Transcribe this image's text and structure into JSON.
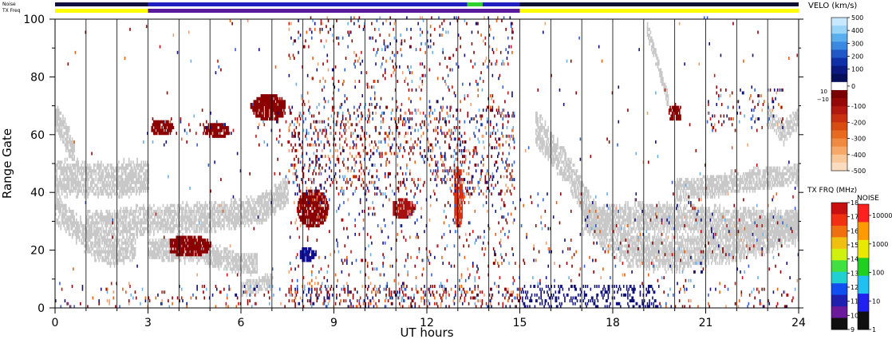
{
  "header": {
    "noise_label": "Noise",
    "txfreq_label": "TX Freq"
  },
  "chart_data": {
    "type": "heatmap",
    "title": "",
    "xlabel": "UT hours",
    "ylabel": "Range Gate",
    "xlim": [
      0,
      24
    ],
    "ylim": [
      0,
      100
    ],
    "x_ticks": [
      0,
      3,
      6,
      9,
      12,
      15,
      18,
      21,
      24
    ],
    "y_ticks": [
      0,
      20,
      40,
      60,
      80,
      100
    ],
    "grid": "vertical lines every 1 hour",
    "ground_scatter_color": "#c8c8c8",
    "velocity_colorbar": {
      "label": "VELO (km/s)",
      "ticks": [
        500,
        400,
        300,
        200,
        100,
        0,
        -100,
        -200,
        -300,
        -400,
        -500
      ],
      "threshold_labels": [
        "10",
        "−10"
      ]
    },
    "txfreq_colorbar": {
      "label": "TX FRQ (MHz)",
      "ticks": [
        18,
        17,
        16,
        15,
        14,
        13,
        12,
        11,
        10,
        9
      ]
    },
    "noise_colorbar": {
      "label": "NOISE",
      "ticks": [
        "10000",
        "1000",
        "100",
        "10",
        "1"
      ]
    },
    "txfreq_segments": [
      {
        "start": 0,
        "end": 3,
        "color": "#ffff00"
      },
      {
        "start": 3,
        "end": 15,
        "color": "#5a1a9e"
      },
      {
        "start": 15,
        "end": 24,
        "color": "#ffff00"
      }
    ],
    "noise_segments": [
      {
        "start": 0,
        "end": 3,
        "color": "#101040"
      },
      {
        "start": 3,
        "end": 13.3,
        "color": "#2020c0"
      },
      {
        "start": 13.3,
        "end": 13.8,
        "color": "#30d030"
      },
      {
        "start": 13.8,
        "end": 15,
        "color": "#2020c0"
      },
      {
        "start": 15,
        "end": 24,
        "color": "#101030"
      }
    ],
    "ground_scatter_bands": [
      {
        "start": 0.0,
        "end": 3.0,
        "points": [
          [
            0.0,
            45
          ],
          [
            1.0,
            44
          ],
          [
            2.0,
            44
          ],
          [
            3.0,
            45
          ]
        ],
        "width": 5
      },
      {
        "start": 0.0,
        "end": 2.6,
        "points": [
          [
            0.0,
            34
          ],
          [
            0.6,
            28
          ],
          [
            1.2,
            21
          ],
          [
            1.8,
            19
          ],
          [
            2.6,
            21
          ]
        ],
        "width": 4
      },
      {
        "start": 0.0,
        "end": 0.6,
        "points": [
          [
            0.0,
            66
          ],
          [
            0.3,
            60
          ],
          [
            0.6,
            53
          ]
        ],
        "width": 4
      },
      {
        "start": 1.0,
        "end": 7.5,
        "points": [
          [
            1.0,
            28
          ],
          [
            3.0,
            30
          ],
          [
            5.0,
            31
          ],
          [
            6.5,
            33
          ],
          [
            7.5,
            40
          ]
        ],
        "width": 4
      },
      {
        "start": 3.0,
        "end": 6.5,
        "points": [
          [
            3.0,
            20
          ],
          [
            4.5,
            19
          ],
          [
            6.0,
            15
          ]
        ],
        "width": 3
      },
      {
        "start": 6.0,
        "end": 7.0,
        "points": [
          [
            6.0,
            6
          ],
          [
            7.0,
            9
          ]
        ],
        "width": 2
      },
      {
        "start": 15.5,
        "end": 24.0,
        "points": [
          [
            15.5,
            62
          ],
          [
            16.5,
            48
          ],
          [
            17.5,
            28
          ],
          [
            18.5,
            20
          ],
          [
            20.0,
            18
          ],
          [
            22.0,
            22
          ],
          [
            24.0,
            28
          ]
        ],
        "width": 5
      },
      {
        "start": 17.0,
        "end": 24.0,
        "points": [
          [
            17.0,
            30
          ],
          [
            19.0,
            31
          ],
          [
            21.0,
            30
          ],
          [
            24.0,
            28
          ]
        ],
        "width": 4
      },
      {
        "start": 20.0,
        "end": 24.0,
        "points": [
          [
            20.0,
            40
          ],
          [
            22.0,
            43
          ],
          [
            24.0,
            46
          ]
        ],
        "width": 3
      },
      {
        "start": 23.0,
        "end": 24.0,
        "points": [
          [
            23.0,
            66
          ],
          [
            23.5,
            60
          ],
          [
            24.0,
            66
          ]
        ],
        "width": 3
      },
      {
        "start": 19.1,
        "end": 19.8,
        "points": [
          [
            19.1,
            96
          ],
          [
            19.5,
            82
          ],
          [
            19.8,
            70
          ]
        ],
        "width": 2
      }
    ],
    "flow_patches": [
      {
        "start": 3.7,
        "end": 5.0,
        "center": [
          4.3,
          21
        ],
        "half_width": 2.6,
        "color": "#8b0000"
      },
      {
        "start": 6.3,
        "end": 7.4,
        "center": [
          6.9,
          69
        ],
        "half_width": 3.5,
        "color": "#8b0000"
      },
      {
        "start": 7.8,
        "end": 8.8,
        "center": [
          8.3,
          34
        ],
        "half_width": 5.5,
        "color": "#8b0000"
      },
      {
        "start": 10.9,
        "end": 11.6,
        "center": [
          11.2,
          34
        ],
        "half_width": 2.2,
        "color": "#a81010"
      },
      {
        "start": 12.85,
        "end": 13.15,
        "center": [
          13.0,
          38
        ],
        "half_width": 10.0,
        "color": "#d83010"
      },
      {
        "start": 3.1,
        "end": 3.8,
        "center": [
          3.4,
          62
        ],
        "half_width": 1.5,
        "color": "#8b0000"
      },
      {
        "start": 4.8,
        "end": 5.6,
        "center": [
          5.2,
          61
        ],
        "half_width": 1.5,
        "color": "#8b0000"
      },
      {
        "start": 7.9,
        "end": 8.4,
        "center": [
          8.1,
          18
        ],
        "half_width": 1.3,
        "color": "#101090"
      },
      {
        "start": 19.8,
        "end": 20.2,
        "center": [
          20.0,
          67
        ],
        "half_width": 2.0,
        "color": "#8b0000"
      }
    ]
  }
}
